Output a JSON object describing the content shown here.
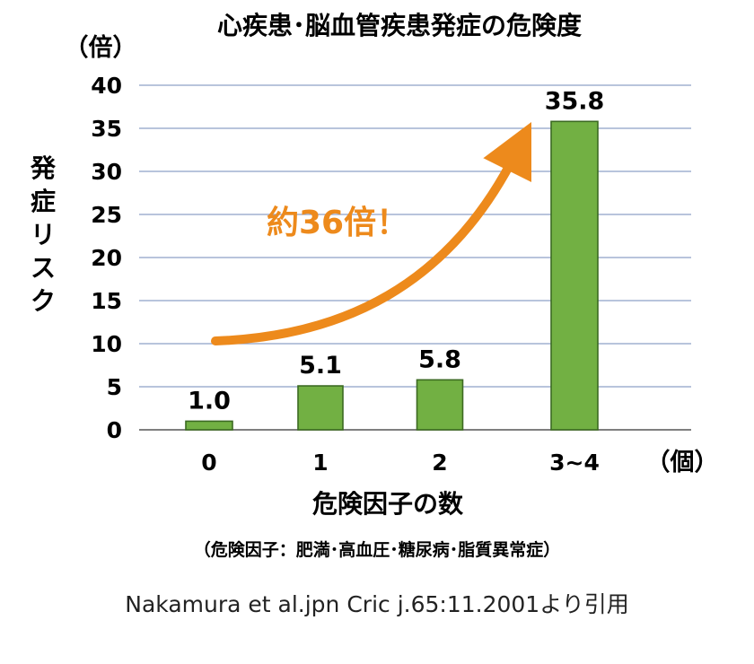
{
  "chart_data": {
    "type": "bar",
    "title": "心疾患･脳血管疾患発症の危険度",
    "y_unit": "（倍）",
    "ylabel": "発症リスク",
    "x_unit": "（個）",
    "xlabel": "危険因子の数",
    "footnote": "（危険因子：肥満･高血圧･糖尿病･脂質異常症）",
    "categories": [
      "0",
      "1",
      "2",
      "3~4"
    ],
    "values": [
      1.0,
      5.1,
      5.8,
      35.8
    ],
    "value_labels": [
      "1.0",
      "5.1",
      "5.8",
      "35.8"
    ],
    "ylim": [
      0,
      40
    ],
    "yticks": [
      "0",
      "5",
      "10",
      "15",
      "20",
      "25",
      "30",
      "35",
      "40"
    ],
    "grid": true,
    "bar_color": "#72B043",
    "annotation": "約36倍！",
    "annotation_color": "#ED8A1C"
  },
  "source": "Nakamura et al.jpn Cric j.65:11.2001より引用"
}
